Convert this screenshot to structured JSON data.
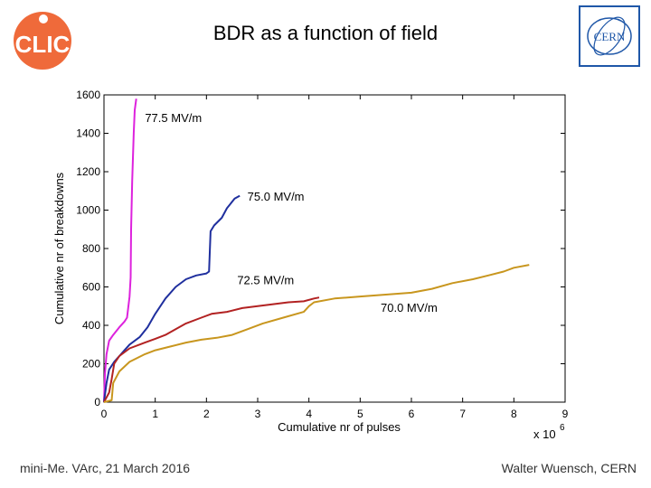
{
  "slide": {
    "title": "BDR as a function of field",
    "footer_left": "mini-Me. VArc, 21 March 2016",
    "footer_right": "Walter Wuensch, CERN",
    "logo_left_text": "CLIC",
    "logo_right_text": "CERN"
  },
  "colors": {
    "magenta": "#dd22dd",
    "blue": "#1f2f9e",
    "red": "#b22222",
    "gold": "#c8961e",
    "clic_orange": "#ef6a3a",
    "cern_blue": "#1f57a8"
  },
  "chart_data": {
    "type": "line",
    "title": "",
    "xlabel": "Cumulative nr of pulses",
    "ylabel": "Cumulative nr of breakdowns",
    "x_multiplier": "x 10",
    "x_exponent": "6",
    "xlim": [
      0,
      9
    ],
    "ylim": [
      0,
      1600
    ],
    "xticks": [
      "0",
      "1",
      "2",
      "3",
      "4",
      "5",
      "6",
      "7",
      "8",
      "9"
    ],
    "yticks": [
      "0",
      "200",
      "400",
      "600",
      "800",
      "1000",
      "1200",
      "1400",
      "1600"
    ],
    "series": [
      {
        "name": "77.5 MV/m",
        "label": "77.5 MV/m",
        "color": "#dd22dd",
        "points": [
          [
            0,
            0
          ],
          [
            0.02,
            150
          ],
          [
            0.05,
            250
          ],
          [
            0.1,
            320
          ],
          [
            0.18,
            350
          ],
          [
            0.3,
            390
          ],
          [
            0.4,
            420
          ],
          [
            0.45,
            440
          ],
          [
            0.5,
            550
          ],
          [
            0.52,
            650
          ],
          [
            0.53,
            900
          ],
          [
            0.55,
            1150
          ],
          [
            0.58,
            1400
          ],
          [
            0.6,
            1520
          ],
          [
            0.63,
            1580
          ]
        ]
      },
      {
        "name": "75.0 MV/m",
        "label": "75.0 MV/m",
        "color": "#1f2f9e",
        "points": [
          [
            0,
            0
          ],
          [
            0.05,
            100
          ],
          [
            0.1,
            170
          ],
          [
            0.2,
            210
          ],
          [
            0.3,
            240
          ],
          [
            0.4,
            270
          ],
          [
            0.5,
            300
          ],
          [
            0.7,
            340
          ],
          [
            0.85,
            390
          ],
          [
            1.0,
            460
          ],
          [
            1.2,
            540
          ],
          [
            1.4,
            600
          ],
          [
            1.6,
            640
          ],
          [
            1.8,
            660
          ],
          [
            2.0,
            670
          ],
          [
            2.05,
            680
          ],
          [
            2.08,
            890
          ],
          [
            2.15,
            920
          ],
          [
            2.3,
            960
          ],
          [
            2.4,
            1010
          ],
          [
            2.55,
            1060
          ],
          [
            2.65,
            1075
          ]
        ]
      },
      {
        "name": "72.5 MV/m",
        "label": "72.5 MV/m",
        "color": "#b22222",
        "points": [
          [
            0,
            0
          ],
          [
            0.1,
            50
          ],
          [
            0.15,
            120
          ],
          [
            0.2,
            200
          ],
          [
            0.3,
            240
          ],
          [
            0.5,
            280
          ],
          [
            0.8,
            310
          ],
          [
            1.0,
            330
          ],
          [
            1.2,
            350
          ],
          [
            1.4,
            380
          ],
          [
            1.6,
            410
          ],
          [
            1.9,
            440
          ],
          [
            2.1,
            460
          ],
          [
            2.4,
            470
          ],
          [
            2.7,
            490
          ],
          [
            3.0,
            500
          ],
          [
            3.3,
            510
          ],
          [
            3.6,
            520
          ],
          [
            3.9,
            525
          ],
          [
            4.1,
            540
          ],
          [
            4.2,
            545
          ]
        ]
      },
      {
        "name": "70.0 MV/m",
        "label": "70.0 MV/m",
        "color": "#c8961e",
        "points": [
          [
            0,
            0
          ],
          [
            0.15,
            10
          ],
          [
            0.18,
            100
          ],
          [
            0.3,
            160
          ],
          [
            0.5,
            210
          ],
          [
            0.8,
            250
          ],
          [
            1.0,
            270
          ],
          [
            1.3,
            290
          ],
          [
            1.6,
            310
          ],
          [
            1.9,
            325
          ],
          [
            2.2,
            335
          ],
          [
            2.5,
            350
          ],
          [
            2.8,
            380
          ],
          [
            3.1,
            410
          ],
          [
            3.5,
            440
          ],
          [
            3.9,
            470
          ],
          [
            4.0,
            500
          ],
          [
            4.1,
            520
          ],
          [
            4.5,
            540
          ],
          [
            5.0,
            550
          ],
          [
            5.5,
            560
          ],
          [
            6.0,
            570
          ],
          [
            6.4,
            590
          ],
          [
            6.8,
            620
          ],
          [
            7.2,
            640
          ],
          [
            7.5,
            660
          ],
          [
            7.8,
            680
          ],
          [
            8.0,
            700
          ],
          [
            8.3,
            715
          ]
        ]
      }
    ],
    "annotations": [
      {
        "text": "77.5 MV/m",
        "x": 0.8,
        "y": 1460
      },
      {
        "text": "75.0 MV/m",
        "x": 2.8,
        "y": 1050
      },
      {
        "text": "72.5 MV/m",
        "x": 2.6,
        "y": 615
      },
      {
        "text": "70.0 MV/m",
        "x": 5.4,
        "y": 470
      }
    ]
  }
}
